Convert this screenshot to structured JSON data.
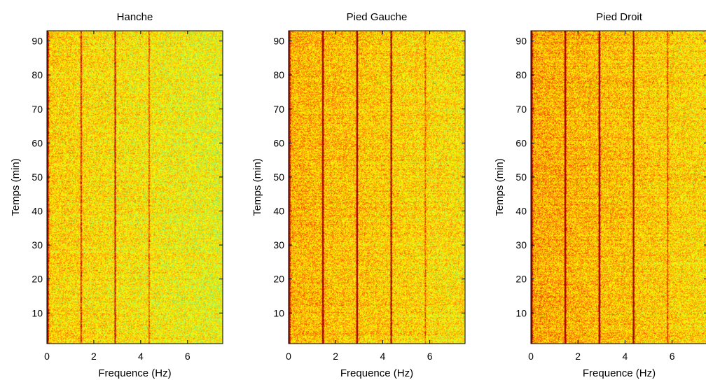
{
  "chart_data": [
    {
      "type": "heatmap",
      "title": "Hanche",
      "xlabel": "Frequence (Hz)",
      "ylabel": "Temps (min)",
      "xlim": [
        0,
        7.5
      ],
      "ylim": [
        1,
        93
      ],
      "xticks": [
        0,
        2,
        4,
        6
      ],
      "yticks": [
        10,
        20,
        30,
        40,
        50,
        60,
        70,
        80,
        90
      ],
      "colormap": [
        "#00a0c0",
        "#40e0a0",
        "#a0f060",
        "#ffff00",
        "#ffc000",
        "#ff6000",
        "#d01000",
        "#800000"
      ],
      "peak_frequencies_hz": [
        0,
        1.45,
        2.9,
        4.35
      ],
      "peak_strengths": [
        1.0,
        0.35,
        0.45,
        0.25
      ],
      "background_level": 0.52
    },
    {
      "type": "heatmap",
      "title": "Pied Gauche",
      "xlabel": "Frequence (Hz)",
      "ylabel": "Temps (min)",
      "xlim": [
        0,
        7.5
      ],
      "ylim": [
        1,
        93
      ],
      "xticks": [
        0,
        2,
        4,
        6
      ],
      "yticks": [
        10,
        20,
        30,
        40,
        50,
        60,
        70,
        80,
        90
      ],
      "colormap": [
        "#00a0c0",
        "#40e0a0",
        "#a0f060",
        "#ffff00",
        "#ffc000",
        "#ff6000",
        "#d01000",
        "#800000"
      ],
      "peak_frequencies_hz": [
        0,
        1.45,
        2.9,
        4.35,
        5.8
      ],
      "peak_strengths": [
        0.8,
        0.7,
        0.75,
        0.6,
        0.2
      ],
      "background_level": 0.58
    },
    {
      "type": "heatmap",
      "title": "Pied Droit",
      "xlabel": "Frequence (Hz)",
      "ylabel": "Temps (min)",
      "xlim": [
        0,
        7.5
      ],
      "ylim": [
        1,
        93
      ],
      "xticks": [
        0,
        2,
        4,
        6
      ],
      "yticks": [
        10,
        20,
        30,
        40,
        50,
        60,
        70,
        80,
        90
      ],
      "colormap": [
        "#00a0c0",
        "#40e0a0",
        "#a0f060",
        "#ffff00",
        "#ffc000",
        "#ff6000",
        "#d01000",
        "#800000"
      ],
      "peak_frequencies_hz": [
        0,
        1.45,
        2.9,
        4.35,
        5.8
      ],
      "peak_strengths": [
        0.85,
        0.75,
        0.7,
        0.6,
        0.25
      ],
      "background_level": 0.6
    }
  ]
}
